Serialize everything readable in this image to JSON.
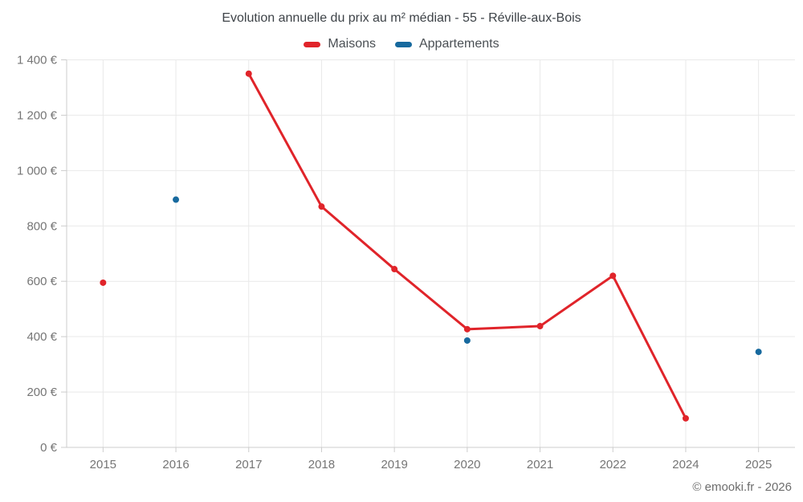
{
  "chart_data": {
    "type": "line",
    "title": "Evolution annuelle du prix au m² médian - 55 - Réville-aux-Bois",
    "categories": [
      "2015",
      "2016",
      "2017",
      "2018",
      "2019",
      "2020",
      "2021",
      "2022",
      "2024",
      "2025"
    ],
    "series": [
      {
        "name": "Maisons",
        "color": "#e0242a",
        "values": [
          595,
          null,
          1350,
          870,
          644,
          427,
          438,
          620,
          105,
          null
        ]
      },
      {
        "name": "Appartements",
        "color": "#17699e",
        "values": [
          null,
          895,
          null,
          null,
          null,
          386,
          null,
          null,
          null,
          345
        ]
      }
    ],
    "ylim": [
      0,
      1400
    ],
    "ytick_step": 200,
    "ytick_suffix": " €",
    "grid": true,
    "legend_position": "top",
    "marker_radius": 4,
    "line_width": 3,
    "colors": {
      "grid": "#e9e9e9",
      "axis": "#cccccc",
      "tick_label": "#757575"
    }
  },
  "footer": {
    "copyright": "© emooki.fr - 2026"
  }
}
